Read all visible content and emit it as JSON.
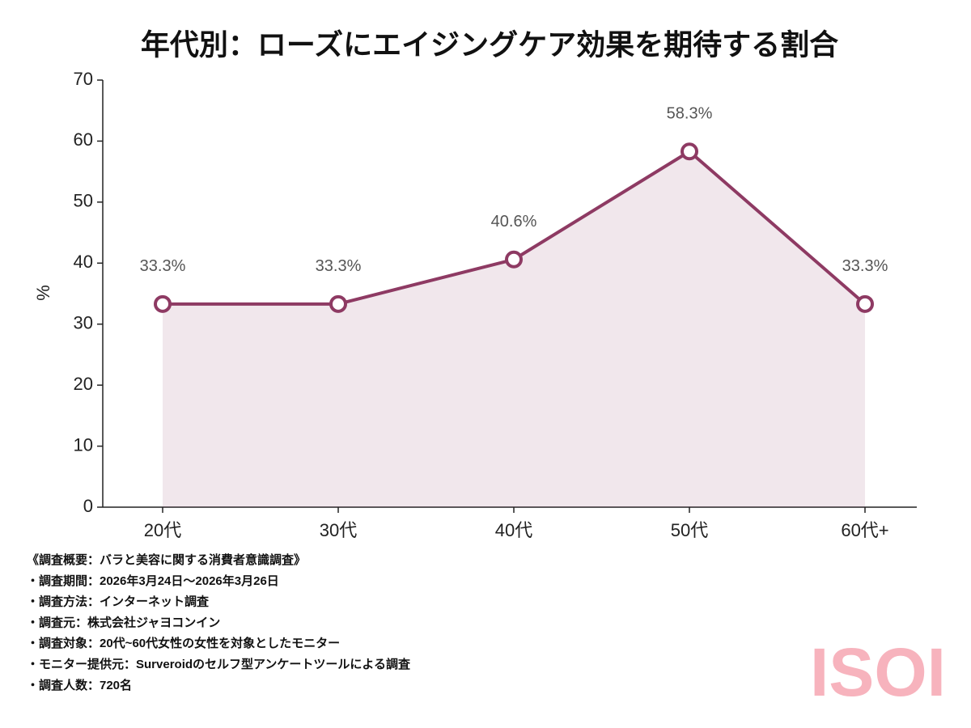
{
  "chart_data": {
    "type": "area",
    "title": "年代別：ローズにエイジングケア効果を期待する割合",
    "y_label": "%",
    "categories": [
      "20代",
      "30代",
      "40代",
      "50代",
      "60代+"
    ],
    "series": [
      {
        "color": "#8e3a63",
        "values": [
          33.3,
          33.3,
          40.6,
          58.3,
          33.3
        ],
        "value_labels": [
          "33.3%",
          "33.3%",
          "40.6%",
          "58.3%",
          "33.3%"
        ]
      }
    ],
    "ylim": [
      0,
      70
    ],
    "yticks": [
      0,
      10,
      20,
      30,
      40,
      50,
      60,
      70
    ]
  },
  "notes": [
    "《調査概要：バラと美容に関する消費者意識調査》",
    "・調査期間：2026年3月24日～2026年3月26日",
    "・調査方法：インターネット調査",
    "・調査元：株式会社ジャヨコンイン",
    "・調査対象：20代~60代女性の女性を対象としたモニター",
    "・モニター提供元：Surveroidのセルフ型アンケートツールによる調査",
    "・調査人数：720名"
  ],
  "watermark": "ISOI"
}
